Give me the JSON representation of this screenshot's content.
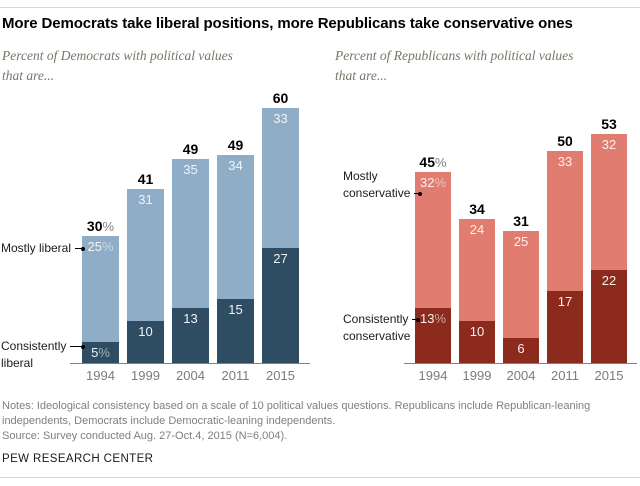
{
  "header": {
    "title": "More Democrats take liberal positions, more Republicans take conservative ones"
  },
  "charts": [
    {
      "subtitle_line1": "Percent of Democrats with political values",
      "subtitle_line2": "that are...",
      "colors": {
        "light": "#8FADC6",
        "dark": "#2E4D63"
      },
      "ann_light": [
        "Mostly liberal"
      ],
      "ann_dark": [
        "Consistently",
        "liberal"
      ],
      "bars": [
        {
          "year": "1994",
          "total": 30,
          "light": 25,
          "dark": 5,
          "total_text": "30",
          "total_suffix": "%",
          "light_text": "25",
          "light_suffix": "%",
          "dark_text": "5",
          "dark_suffix": "%"
        },
        {
          "year": "1999",
          "total": 41,
          "light": 31,
          "dark": 10,
          "total_text": "41",
          "total_suffix": "",
          "light_text": "31",
          "light_suffix": "",
          "dark_text": "10",
          "dark_suffix": ""
        },
        {
          "year": "2004",
          "total": 49,
          "light": 35,
          "dark": 13,
          "total_text": "49",
          "total_suffix": "",
          "light_text": "35",
          "light_suffix": "",
          "dark_text": "13",
          "dark_suffix": ""
        },
        {
          "year": "2011",
          "total": 49,
          "light": 34,
          "dark": 15,
          "total_text": "49",
          "total_suffix": "",
          "light_text": "34",
          "light_suffix": "",
          "dark_text": "15",
          "dark_suffix": ""
        },
        {
          "year": "2015",
          "total": 60,
          "light": 33,
          "dark": 27,
          "total_text": "60",
          "total_suffix": "",
          "light_text": "33",
          "light_suffix": "",
          "dark_text": "27",
          "dark_suffix": ""
        }
      ]
    },
    {
      "subtitle_line1": "Percent of Republicans with political values",
      "subtitle_line2": "that are...",
      "colors": {
        "light": "#E17C70",
        "dark": "#8C2A1E"
      },
      "ann_light": [
        "Mostly",
        "conservative"
      ],
      "ann_dark": [
        "Consistently",
        "conservative"
      ],
      "bars": [
        {
          "year": "1994",
          "total": 45,
          "light": 32,
          "dark": 13,
          "total_text": "45",
          "total_suffix": "%",
          "light_text": "32",
          "light_suffix": "%",
          "dark_text": "13",
          "dark_suffix": "%"
        },
        {
          "year": "1999",
          "total": 34,
          "light": 24,
          "dark": 10,
          "total_text": "34",
          "total_suffix": "",
          "light_text": "24",
          "light_suffix": "",
          "dark_text": "10",
          "dark_suffix": ""
        },
        {
          "year": "2004",
          "total": 31,
          "light": 25,
          "dark": 6,
          "total_text": "31",
          "total_suffix": "",
          "light_text": "25",
          "light_suffix": "",
          "dark_text": "6",
          "dark_suffix": ""
        },
        {
          "year": "2011",
          "total": 50,
          "light": 33,
          "dark": 17,
          "total_text": "50",
          "total_suffix": "",
          "light_text": "33",
          "light_suffix": "",
          "dark_text": "17",
          "dark_suffix": ""
        },
        {
          "year": "2015",
          "total": 53,
          "light": 32,
          "dark": 22,
          "total_text": "53",
          "total_suffix": "",
          "light_text": "32",
          "light_suffix": "",
          "dark_text": "22",
          "dark_suffix": ""
        }
      ]
    }
  ],
  "footer": {
    "notes": "Notes: Ideological consistency based on a scale of 10 political values questions. Republicans include Republican-leaning independents, Democrats include Democratic-leaning independents.",
    "source": "Source: Survey conducted Aug. 27-Oct.4, 2015 (N=6,004).",
    "brand": "PEW RESEARCH CENTER"
  },
  "chart_data": [
    {
      "type": "bar",
      "stacked": true,
      "title": "Percent of Democrats with political values that are...",
      "categories": [
        "1994",
        "1999",
        "2004",
        "2011",
        "2015"
      ],
      "series": [
        {
          "name": "Consistently liberal",
          "values": [
            5,
            10,
            13,
            15,
            27
          ],
          "color": "#2E4D63"
        },
        {
          "name": "Mostly liberal",
          "values": [
            25,
            31,
            35,
            34,
            33
          ],
          "color": "#8FADC6"
        }
      ],
      "totals": [
        30,
        41,
        49,
        49,
        60
      ],
      "xlabel": "",
      "ylabel": "",
      "ylim": [
        0,
        65
      ],
      "grid": false,
      "legend_position": "left-annotations"
    },
    {
      "type": "bar",
      "stacked": true,
      "title": "Percent of Republicans with political values that are...",
      "categories": [
        "1994",
        "1999",
        "2004",
        "2011",
        "2015"
      ],
      "series": [
        {
          "name": "Consistently conservative",
          "values": [
            13,
            10,
            6,
            17,
            22
          ],
          "color": "#8C2A1E"
        },
        {
          "name": "Mostly conservative",
          "values": [
            32,
            24,
            25,
            33,
            32
          ],
          "color": "#E17C70"
        }
      ],
      "totals": [
        45,
        34,
        31,
        50,
        53
      ],
      "xlabel": "",
      "ylabel": "",
      "ylim": [
        0,
        65
      ],
      "grid": false,
      "legend_position": "left-annotations"
    }
  ]
}
